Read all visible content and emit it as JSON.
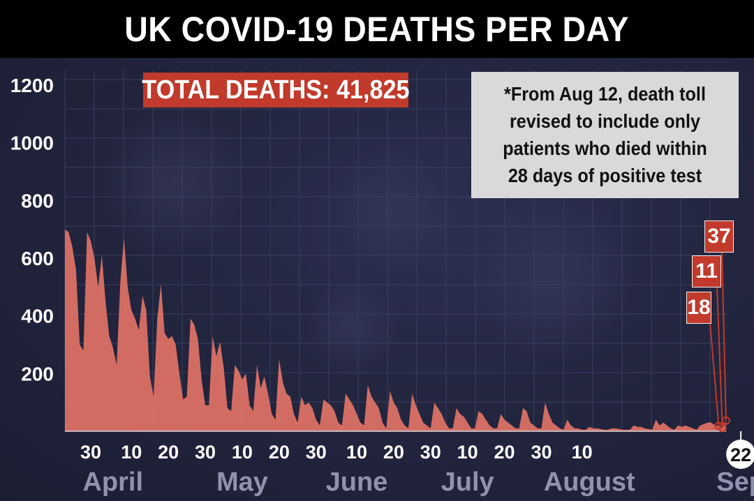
{
  "title": "UK COVID-19 DEATHS PER DAY",
  "total_badge": "TOTAL DEATHS: 41,825",
  "note_lines": [
    "*From Aug 12, death toll",
    "revised to include only",
    "patients who died within",
    "28 days of positive test"
  ],
  "colors": {
    "area": "#e27366",
    "accent": "#c13a2b",
    "axis_text": "#ffffff",
    "month_text": "#8f93ad"
  },
  "chart_data": {
    "type": "area",
    "title": "UK COVID-19 DEATHS PER DAY",
    "ylim": [
      0,
      1200
    ],
    "yticks": [
      200,
      400,
      600,
      800,
      1000,
      1200
    ],
    "x_tick_labels": [
      "30",
      "10",
      "20",
      "30",
      "10",
      "20",
      "30",
      "10",
      "20",
      "30",
      "10",
      "20",
      "30",
      "10",
      "22"
    ],
    "month_labels": [
      "April",
      "May",
      "June",
      "July",
      "August",
      "Sep"
    ],
    "start_date": "2020-03-23",
    "end_date": "2020-09-22",
    "series": [
      {
        "values": [
          700,
          690,
          640,
          560,
          300,
          280,
          690,
          660,
          600,
          500,
          610,
          450,
          330,
          290,
          230,
          520,
          670,
          500,
          420,
          390,
          350,
          470,
          420,
          190,
          120,
          390,
          510,
          340,
          320,
          330,
          300,
          200,
          110,
          120,
          390,
          370,
          320,
          180,
          90,
          90,
          330,
          260,
          310,
          220,
          80,
          70,
          230,
          210,
          180,
          200,
          90,
          70,
          230,
          150,
          190,
          130,
          60,
          40,
          250,
          170,
          130,
          120,
          60,
          30,
          120,
          90,
          100,
          80,
          40,
          20,
          110,
          100,
          90,
          70,
          30,
          20,
          130,
          110,
          90,
          60,
          30,
          20,
          160,
          120,
          100,
          80,
          30,
          10,
          140,
          100,
          80,
          40,
          20,
          10,
          130,
          90,
          60,
          30,
          20,
          10,
          100,
          80,
          60,
          30,
          10,
          10,
          80,
          60,
          50,
          30,
          10,
          10,
          70,
          60,
          40,
          20,
          10,
          10,
          60,
          40,
          30,
          20,
          10,
          10,
          80,
          70,
          30,
          20,
          10,
          10,
          100,
          60,
          30,
          20,
          10,
          5,
          40,
          20,
          10,
          10,
          5,
          5,
          15,
          10,
          10,
          8,
          5,
          5,
          10,
          10,
          8,
          5,
          5,
          5,
          20,
          15,
          15,
          10,
          8,
          5,
          40,
          20,
          30,
          20,
          10,
          5,
          20,
          15,
          20,
          15,
          10,
          5,
          20,
          25,
          30,
          30,
          20,
          18,
          11,
          37
        ]
      }
    ],
    "annotations": [
      "18",
      "11",
      "37"
    ],
    "highlighted_date_label": "22"
  }
}
